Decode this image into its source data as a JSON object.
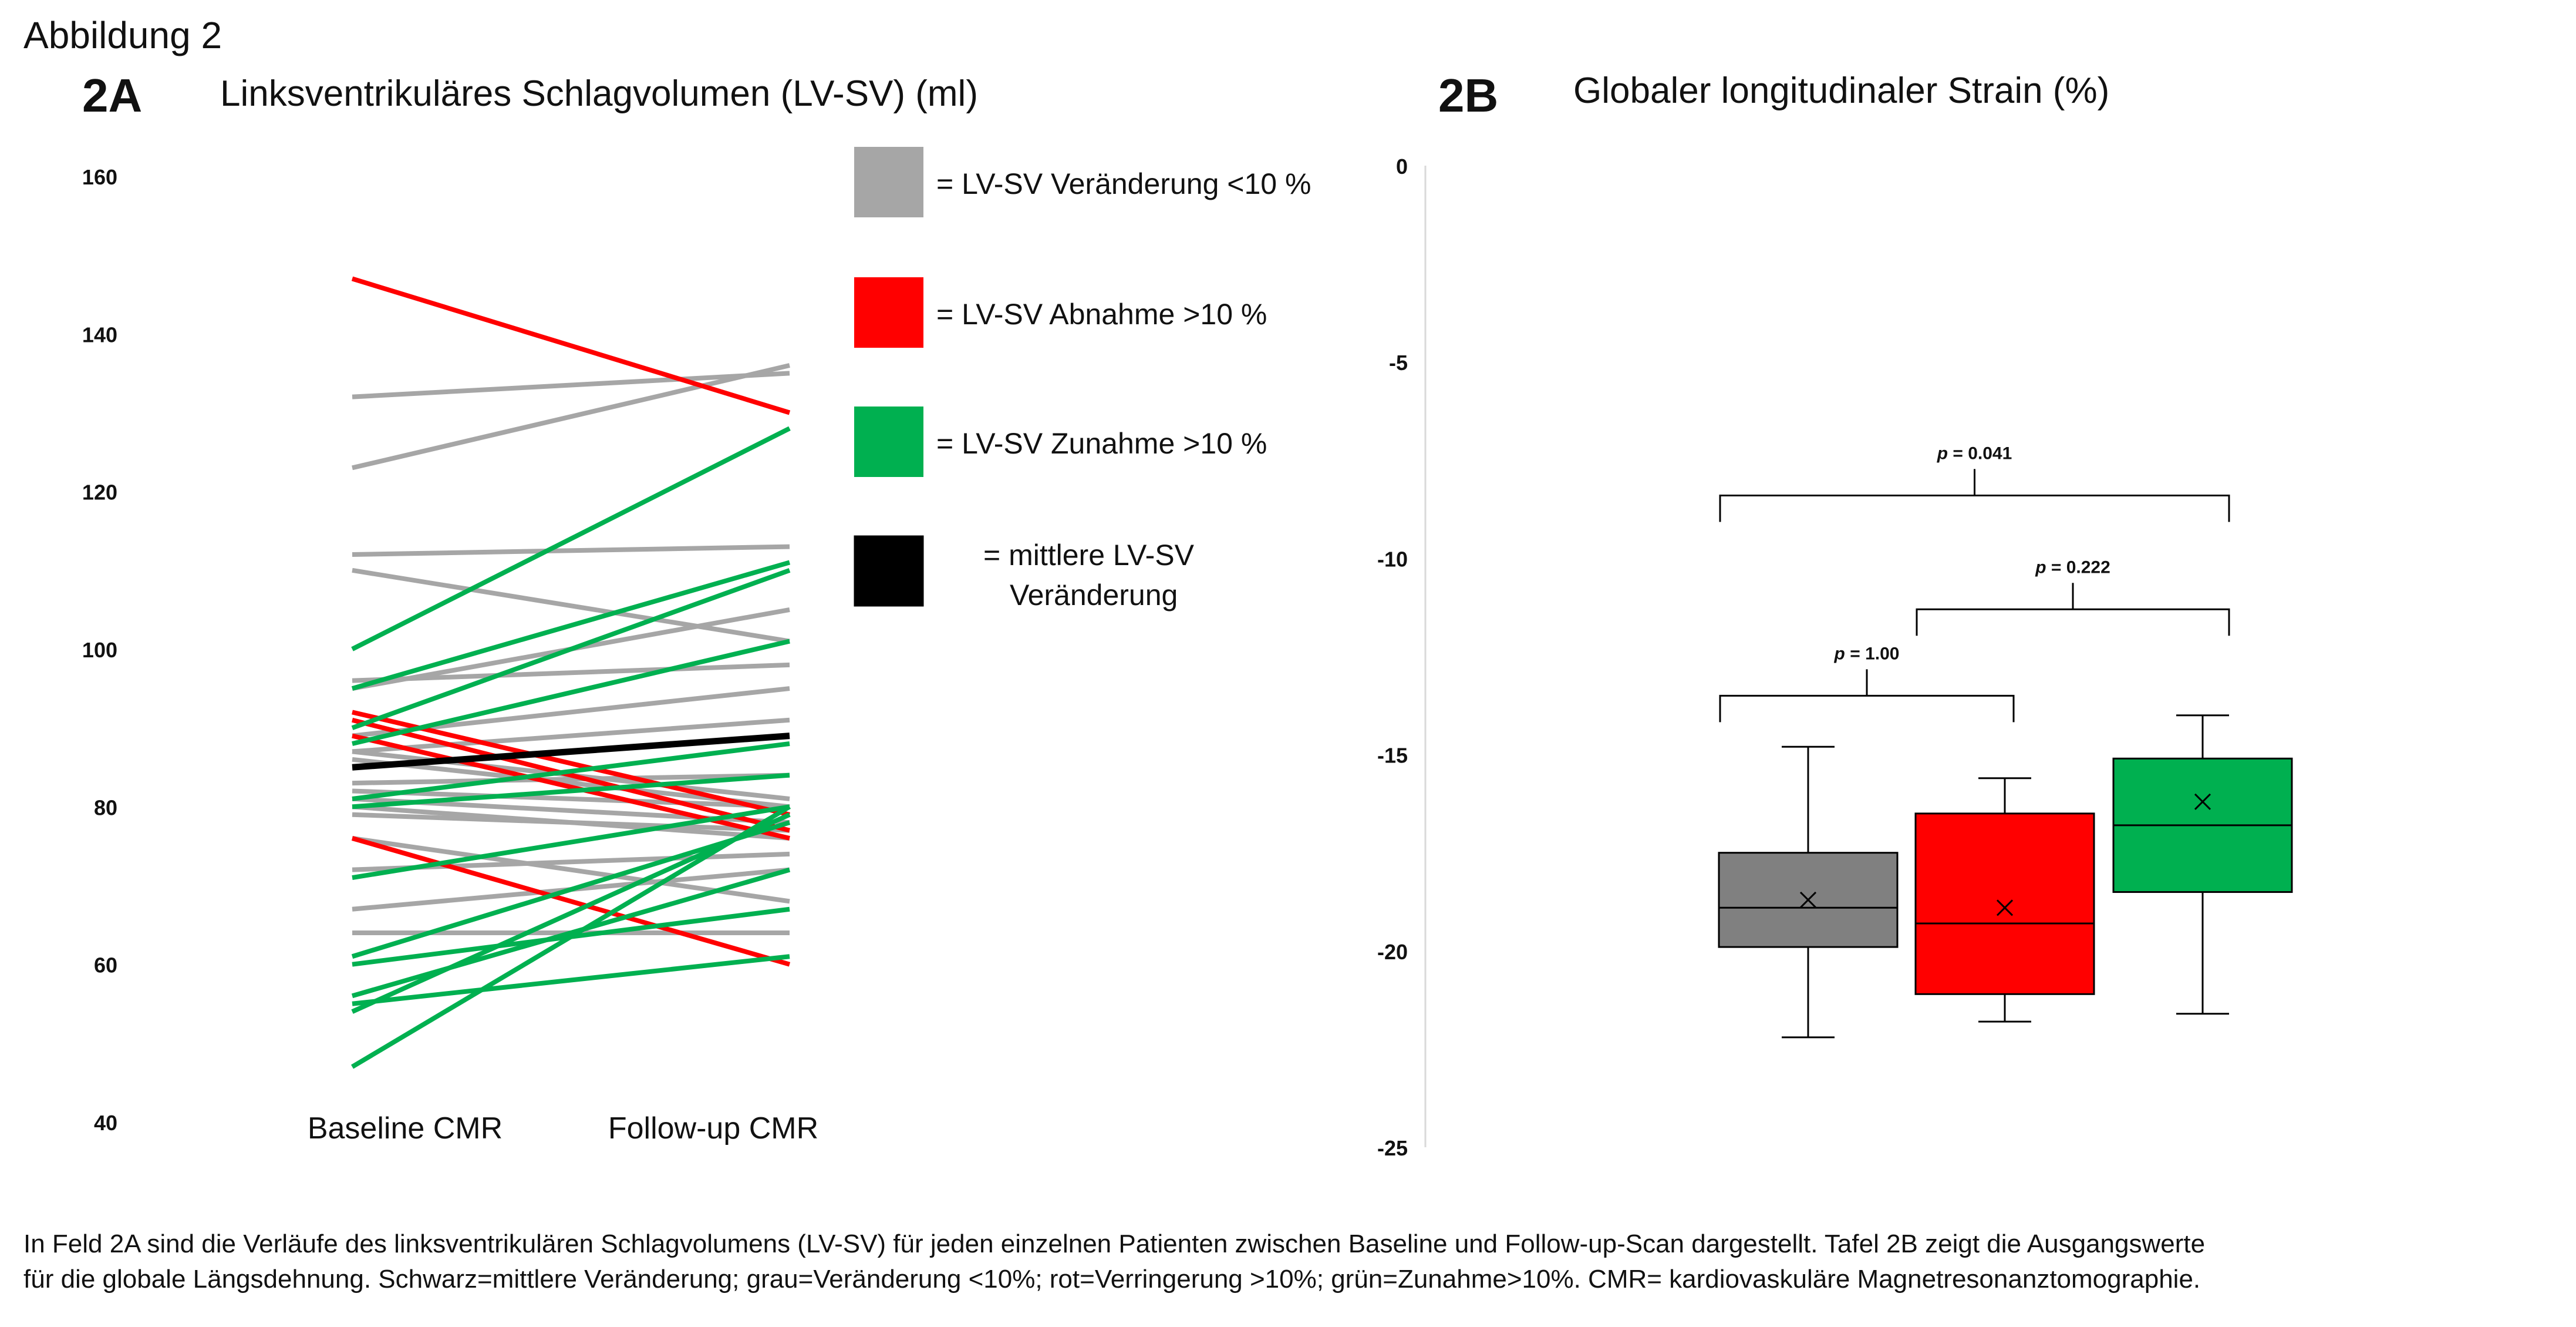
{
  "figure_label": "Abbildung 2",
  "caption": {
    "line1": "In Feld 2A sind die Verläufe des linksventrikulären Schlagvolumens (LV-SV) für jeden einzelnen Patienten zwischen Baseline und Follow-up-Scan dargestellt. Tafel 2B zeigt die Ausgangswerte",
    "line2": "für die globale Längsdehnung. Schwarz=mittlere Veränderung; grau=Veränderung <10%; rot=Verringerung >10%; grün=Zunahme>10%. CMR= kardiovaskuläre Magnetresonanztomographie."
  },
  "colors": {
    "gray": "#a6a6a6",
    "red": "#ff0000",
    "green": "#00b050",
    "black": "#000000",
    "box_gray": "#808080",
    "box_red": "#ff0000",
    "box_green": "#00b050"
  },
  "chart_data": [
    {
      "id": "2A",
      "panel_label": "2A",
      "type": "line",
      "title": "Linksventrikuläres Schlagvolumen (LV-SV) (ml)",
      "categories": [
        "Baseline CMR",
        "Follow-up CMR"
      ],
      "ylim": [
        40,
        160
      ],
      "yticks": [
        "160",
        "140",
        "120",
        "100",
        "80",
        "60",
        "40"
      ],
      "grid": false,
      "legend_position": "top-right",
      "legend": [
        {
          "key": "gray",
          "label": "= LV-SV Veränderung <10 %"
        },
        {
          "key": "red",
          "label": "= LV-SV Abnahme >10 %"
        },
        {
          "key": "green",
          "label": "= LV-SV Zunahme >10 %"
        },
        {
          "key": "black",
          "label_line1": "=  mittlere LV-SV",
          "label_line2": "Veränderung"
        }
      ],
      "series": [
        {
          "group": "gray",
          "values": [
            132,
            135
          ]
        },
        {
          "group": "gray",
          "values": [
            123,
            136
          ]
        },
        {
          "group": "gray",
          "values": [
            112,
            113
          ]
        },
        {
          "group": "gray",
          "values": [
            110,
            101
          ]
        },
        {
          "group": "gray",
          "values": [
            96,
            98
          ]
        },
        {
          "group": "gray",
          "values": [
            95,
            105
          ]
        },
        {
          "group": "gray",
          "values": [
            89,
            95
          ]
        },
        {
          "group": "gray",
          "values": [
            87,
            91
          ]
        },
        {
          "group": "gray",
          "values": [
            87,
            81
          ]
        },
        {
          "group": "gray",
          "values": [
            86,
            80
          ]
        },
        {
          "group": "gray",
          "values": [
            83,
            84
          ]
        },
        {
          "group": "gray",
          "values": [
            82,
            80
          ]
        },
        {
          "group": "gray",
          "values": [
            81,
            78
          ]
        },
        {
          "group": "gray",
          "values": [
            80,
            76
          ]
        },
        {
          "group": "gray",
          "values": [
            79,
            77
          ]
        },
        {
          "group": "gray",
          "values": [
            76,
            68
          ]
        },
        {
          "group": "gray",
          "values": [
            72,
            74
          ]
        },
        {
          "group": "gray",
          "values": [
            67,
            72
          ]
        },
        {
          "group": "gray",
          "values": [
            64,
            64
          ]
        },
        {
          "group": "red",
          "values": [
            147,
            130
          ]
        },
        {
          "group": "red",
          "values": [
            92,
            79
          ]
        },
        {
          "group": "red",
          "values": [
            91,
            77
          ]
        },
        {
          "group": "red",
          "values": [
            89,
            76
          ]
        },
        {
          "group": "red",
          "values": [
            76,
            60
          ]
        },
        {
          "group": "green",
          "values": [
            100,
            128
          ]
        },
        {
          "group": "green",
          "values": [
            95,
            111
          ]
        },
        {
          "group": "green",
          "values": [
            90,
            110
          ]
        },
        {
          "group": "green",
          "values": [
            88,
            101
          ]
        },
        {
          "group": "green",
          "values": [
            81,
            88
          ]
        },
        {
          "group": "green",
          "values": [
            80,
            84
          ]
        },
        {
          "group": "green",
          "values": [
            71,
            80
          ]
        },
        {
          "group": "green",
          "values": [
            61,
            78
          ]
        },
        {
          "group": "green",
          "values": [
            60,
            67
          ]
        },
        {
          "group": "green",
          "values": [
            56,
            72
          ]
        },
        {
          "group": "green",
          "values": [
            55,
            61
          ]
        },
        {
          "group": "green",
          "values": [
            54,
            79
          ]
        },
        {
          "group": "green",
          "values": [
            47,
            80
          ]
        },
        {
          "group": "black",
          "values": [
            85,
            89
          ]
        }
      ]
    },
    {
      "id": "2B",
      "panel_label": "2B",
      "type": "box",
      "title": "Globaler longitudinaler Strain (%)",
      "ylim": [
        -25,
        0
      ],
      "yticks": [
        "0",
        "-5",
        "-10",
        "-15",
        "-20",
        "-25"
      ],
      "grid": false,
      "boxes": [
        {
          "color_key": "box_gray",
          "whisker_low": -22.2,
          "q1": -19.9,
          "median": -18.9,
          "mean": -18.7,
          "q3": -17.5,
          "whisker_high": -14.8
        },
        {
          "color_key": "box_red",
          "whisker_low": -21.8,
          "q1": -21.1,
          "median": -19.3,
          "mean": -18.9,
          "q3": -16.5,
          "whisker_high": -15.6
        },
        {
          "color_key": "box_green",
          "whisker_low": -21.6,
          "q1": -18.5,
          "median": -16.8,
          "mean": -16.2,
          "q3": -15.1,
          "whisker_high": -14.0
        }
      ],
      "annotations": [
        {
          "p_label": "p",
          "p_value": "= 0.041",
          "from": 0,
          "to": 2,
          "level": -8.4
        },
        {
          "p_label": "p",
          "p_value": "= 0.222",
          "from": 1,
          "to": 2,
          "level": -11.3
        },
        {
          "p_label": "p",
          "p_value": "= 1.00",
          "from": 0,
          "to": 1,
          "level": -13.5
        }
      ]
    }
  ]
}
